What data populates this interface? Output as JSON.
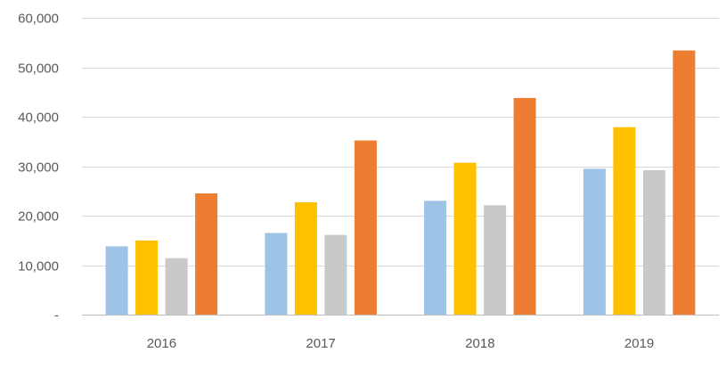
{
  "chart_data": {
    "type": "bar",
    "title": "",
    "xlabel": "",
    "ylabel": "",
    "categories": [
      "2016",
      "2017",
      "2018",
      "2019"
    ],
    "series": [
      {
        "color": "#9dc3e6",
        "values": [
          13800,
          16500,
          23000,
          29500
        ]
      },
      {
        "color": "#ffc000",
        "values": [
          15000,
          22700,
          30700,
          37900
        ]
      },
      {
        "color": "#c9c9c9",
        "values": [
          11400,
          16100,
          22100,
          29200
        ]
      },
      {
        "color": "#ed7d31",
        "values": [
          24500,
          35200,
          43800,
          53400
        ]
      }
    ],
    "ylim": [
      0,
      60000
    ],
    "yticks": [
      {
        "value": 0,
        "label": "-"
      },
      {
        "value": 10000,
        "label": "10,000"
      },
      {
        "value": 20000,
        "label": "20,000"
      },
      {
        "value": 30000,
        "label": "30,000"
      },
      {
        "value": 40000,
        "label": "40,000"
      },
      {
        "value": 50000,
        "label": "50,000"
      },
      {
        "value": 60000,
        "label": "60,000"
      }
    ],
    "grid": true,
    "legend": "none"
  }
}
